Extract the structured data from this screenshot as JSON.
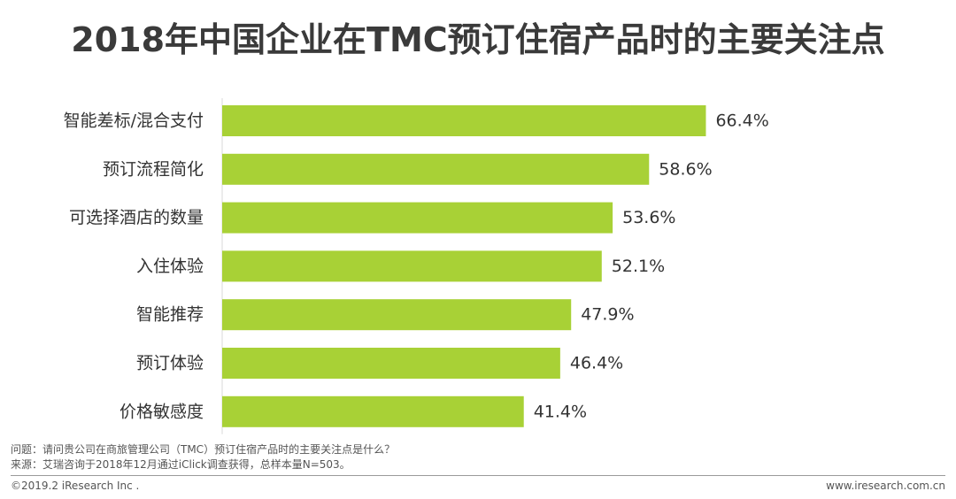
{
  "title": "2018年中国企业在TMC预订住宿产品时的主要关注点",
  "chart_data": {
    "type": "bar",
    "orientation": "horizontal",
    "categories": [
      "智能差标/混合支付",
      "预订流程简化",
      "可选择酒店的数量",
      "入住体验",
      "智能推荐",
      "预订体验",
      "价格敏感度"
    ],
    "values": [
      66.4,
      58.6,
      53.6,
      52.1,
      47.9,
      46.4,
      41.4
    ],
    "value_labels": [
      "66.4%",
      "58.6%",
      "53.6%",
      "52.1%",
      "47.9%",
      "46.4%",
      "41.4%"
    ],
    "unit": "%",
    "bar_color": "#a8d136",
    "xlim": [
      0,
      100
    ],
    "grid": false,
    "legend": "none"
  },
  "footnotes": {
    "question": "问题：请问贵公司在商旅管理公司（TMC）预订住宿产品时的主要关注点是什么？",
    "source": "来源：艾瑞咨询于2018年12月通过iClick调查获得，总样本量N=503。"
  },
  "footer": {
    "copyright": "©2019.2 iResearch Inc .",
    "website": "www.iresearch.com.cn"
  }
}
